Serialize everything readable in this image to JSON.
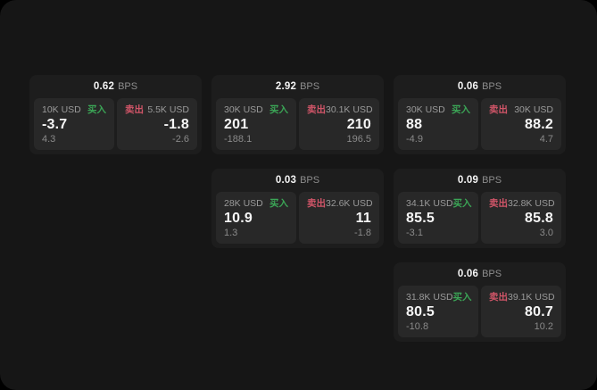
{
  "theme": {
    "page_bg": "#000000",
    "window_bg": "#161616",
    "card_bg": "#1d1d1d",
    "panel_bg": "#282828",
    "text_primary": "#f5f5f5",
    "text_muted": "#9a9a9a",
    "text_sub": "#8a8a8a",
    "text_dim": "#8d8d8d",
    "buy_color": "#3ba556",
    "sell_color": "#d05568"
  },
  "labels": {
    "bps_unit": "BPS",
    "buy": "买入",
    "sell": "卖出"
  },
  "cards": [
    {
      "row": 1,
      "col": 1,
      "bps": "0.62",
      "buy": {
        "amount": "10K USD",
        "value": "-3.7",
        "sub": "4.3"
      },
      "sell": {
        "amount": "5.5K USD",
        "value": "-1.8",
        "sub": "-2.6"
      }
    },
    {
      "row": 1,
      "col": 2,
      "bps": "2.92",
      "buy": {
        "amount": "30K USD",
        "value": "201",
        "sub": "-188.1"
      },
      "sell": {
        "amount": "30.1K USD",
        "value": "210",
        "sub": "196.5"
      }
    },
    {
      "row": 1,
      "col": 3,
      "bps": "0.06",
      "buy": {
        "amount": "30K USD",
        "value": "88",
        "sub": "-4.9"
      },
      "sell": {
        "amount": "30K USD",
        "value": "88.2",
        "sub": "4.7"
      }
    },
    {
      "row": 2,
      "col": 2,
      "bps": "0.03",
      "buy": {
        "amount": "28K USD",
        "value": "10.9",
        "sub": "1.3"
      },
      "sell": {
        "amount": "32.6K USD",
        "value": "11",
        "sub": "-1.8"
      }
    },
    {
      "row": 2,
      "col": 3,
      "bps": "0.09",
      "buy": {
        "amount": "34.1K USD",
        "value": "85.5",
        "sub": "-3.1"
      },
      "sell": {
        "amount": "32.8K USD",
        "value": "85.8",
        "sub": "3.0"
      }
    },
    {
      "row": 3,
      "col": 3,
      "bps": "0.06",
      "buy": {
        "amount": "31.8K USD",
        "value": "80.5",
        "sub": "-10.8"
      },
      "sell": {
        "amount": "39.1K USD",
        "value": "80.7",
        "sub": "10.2"
      }
    }
  ]
}
